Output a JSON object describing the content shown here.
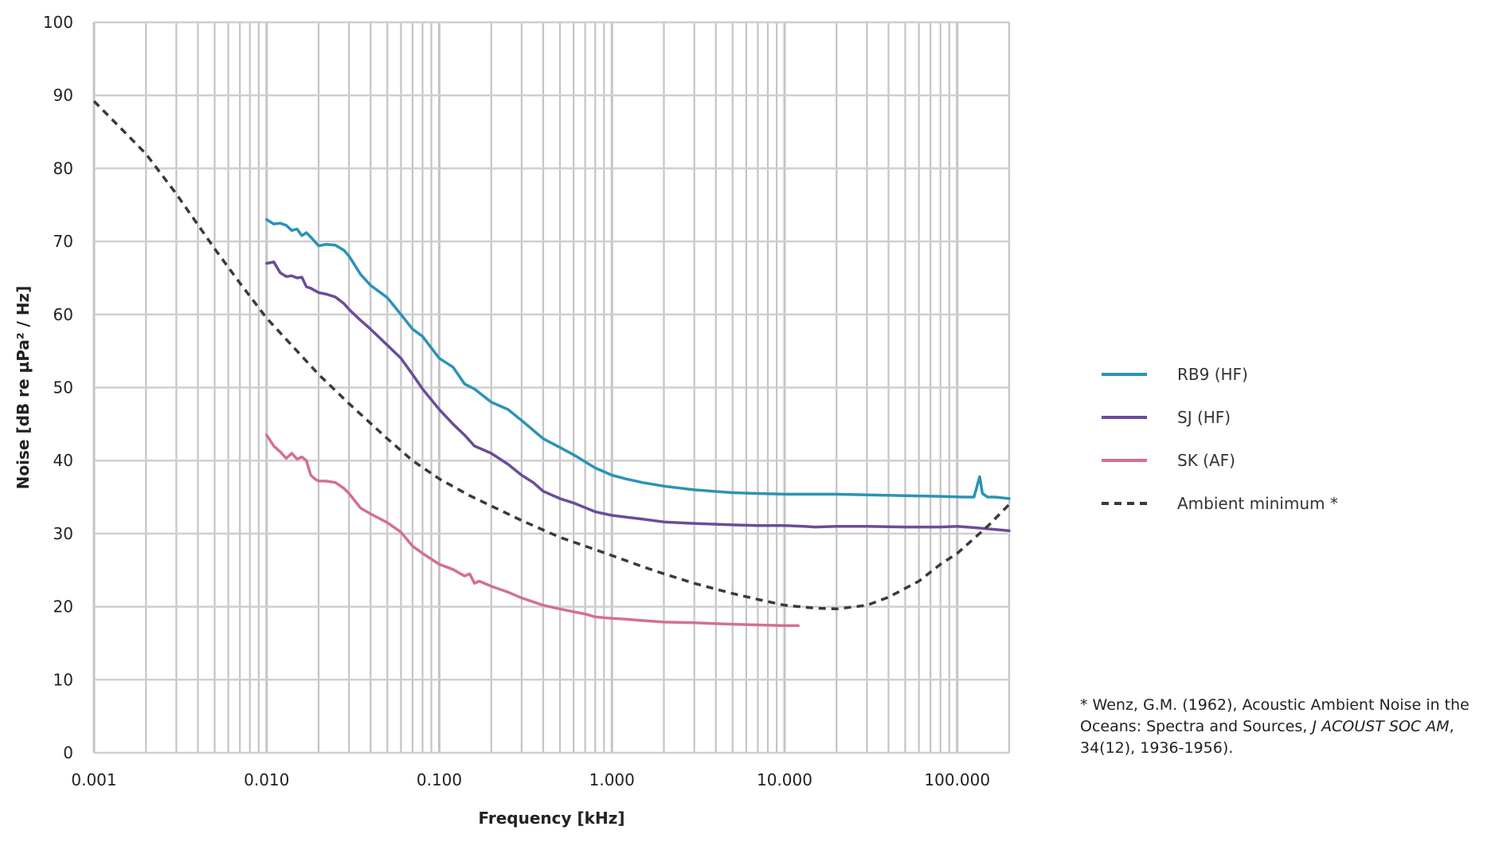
{
  "chart_data": {
    "type": "line",
    "xlabel": "Frequency [kHz]",
    "ylabel": "Noise [dB re µPa² / Hz]",
    "x_scale": "log",
    "xlim": [
      0.001,
      200
    ],
    "ylim": [
      0,
      100
    ],
    "grid": true,
    "legend_position": "right",
    "x_ticks": [
      0.001,
      0.01,
      0.1,
      1,
      10,
      100
    ],
    "x_tick_labels": [
      "0.001",
      "0.010",
      "0.100",
      "1.000",
      "10.000",
      "100.000"
    ],
    "y_ticks": [
      0,
      10,
      20,
      30,
      40,
      50,
      60,
      70,
      80,
      90,
      100
    ],
    "y_tick_labels": [
      "0",
      "10",
      "20",
      "30",
      "40",
      "50",
      "60",
      "70",
      "80",
      "90",
      "100"
    ],
    "series": [
      {
        "name": "RB9 (HF)",
        "color": "#2b93b5",
        "dash": "solid",
        "x": [
          0.01,
          0.011,
          0.012,
          0.013,
          0.014,
          0.015,
          0.016,
          0.017,
          0.018,
          0.02,
          0.022,
          0.025,
          0.028,
          0.03,
          0.035,
          0.04,
          0.05,
          0.06,
          0.07,
          0.08,
          0.1,
          0.12,
          0.14,
          0.16,
          0.2,
          0.25,
          0.3,
          0.4,
          0.5,
          0.6,
          0.8,
          1.0,
          1.2,
          1.5,
          2.0,
          3.0,
          5.0,
          7.0,
          10.0,
          20.0,
          30.0,
          50.0,
          80.0,
          110.0,
          125.0,
          135.0,
          140.0,
          150.0,
          165.0,
          200.0
        ],
        "y": [
          73,
          72.4,
          72.5,
          72.2,
          71.5,
          71.7,
          70.8,
          71.2,
          70.6,
          69.4,
          69.6,
          69.5,
          68.8,
          68,
          65.5,
          64,
          62.3,
          60,
          58,
          57,
          54,
          52.8,
          50.5,
          49.8,
          48,
          47,
          45.5,
          43,
          41.8,
          40.8,
          39,
          38,
          37.5,
          37,
          36.5,
          36,
          35.6,
          35.5,
          35.4,
          35.4,
          35.3,
          35.2,
          35.1,
          35,
          35,
          37.8,
          35.5,
          35,
          35,
          34.8
        ]
      },
      {
        "name": "SJ (HF)",
        "color": "#6b4c9a",
        "dash": "solid",
        "x": [
          0.01,
          0.011,
          0.012,
          0.013,
          0.014,
          0.015,
          0.016,
          0.017,
          0.018,
          0.02,
          0.022,
          0.025,
          0.028,
          0.03,
          0.035,
          0.04,
          0.05,
          0.06,
          0.07,
          0.08,
          0.1,
          0.12,
          0.14,
          0.16,
          0.2,
          0.25,
          0.3,
          0.35,
          0.4,
          0.5,
          0.6,
          0.8,
          1.0,
          1.5,
          2.0,
          3.0,
          5.0,
          7.0,
          10.0,
          13.0,
          15.0,
          20.0,
          30.0,
          50.0,
          80.0,
          100.0,
          130.0,
          200.0
        ],
        "y": [
          67,
          67.2,
          65.7,
          65.2,
          65.3,
          65,
          65.1,
          63.8,
          63.6,
          63,
          62.8,
          62.4,
          61.5,
          60.7,
          59.2,
          58,
          55.8,
          54,
          51.8,
          49.8,
          47,
          45,
          43.5,
          42,
          41,
          39.5,
          38,
          37,
          35.8,
          34.8,
          34.2,
          33,
          32.5,
          32,
          31.6,
          31.4,
          31.2,
          31.1,
          31.1,
          31,
          30.9,
          31,
          31,
          30.9,
          30.9,
          31,
          30.8,
          30.4
        ]
      },
      {
        "name": "SK (AF)",
        "color": "#d4708f",
        "dash": "solid",
        "x": [
          0.01,
          0.011,
          0.012,
          0.013,
          0.014,
          0.015,
          0.016,
          0.017,
          0.018,
          0.019,
          0.02,
          0.022,
          0.025,
          0.028,
          0.03,
          0.035,
          0.04,
          0.05,
          0.06,
          0.07,
          0.08,
          0.1,
          0.12,
          0.14,
          0.15,
          0.16,
          0.17,
          0.2,
          0.25,
          0.3,
          0.4,
          0.5,
          0.6,
          0.7,
          0.8,
          1.0,
          1.2,
          1.5,
          2.0,
          3.0,
          5.0,
          7.0,
          10.0,
          12.0
        ],
        "y": [
          43.5,
          42,
          41.2,
          40.3,
          41,
          40.2,
          40.5,
          40,
          38,
          37.5,
          37.2,
          37.2,
          37,
          36.2,
          35.5,
          33.5,
          32.7,
          31.5,
          30.2,
          28.3,
          27.3,
          25.8,
          25.1,
          24.2,
          24.5,
          23.2,
          23.5,
          22.8,
          22,
          21.2,
          20.2,
          19.7,
          19.3,
          19,
          18.6,
          18.4,
          18.3,
          18.1,
          17.9,
          17.8,
          17.6,
          17.5,
          17.4,
          17.4
        ]
      },
      {
        "name": "Ambient minimum *",
        "color": "#3a3a3a",
        "dash": "dashed",
        "x": [
          0.001,
          0.0015,
          0.002,
          0.003,
          0.005,
          0.007,
          0.01,
          0.015,
          0.02,
          0.03,
          0.05,
          0.07,
          0.1,
          0.15,
          0.2,
          0.3,
          0.5,
          0.7,
          1.0,
          1.5,
          2.0,
          3.0,
          5.0,
          7.0,
          10.0,
          15.0,
          20.0,
          30.0,
          40.0,
          60.0,
          80.0,
          100.0,
          150.0,
          200.0
        ],
        "y": [
          89.2,
          85,
          82,
          76.5,
          69,
          64.3,
          59.5,
          55,
          51.8,
          47.8,
          43,
          40,
          37.5,
          35.2,
          33.8,
          31.8,
          29.5,
          28.3,
          27,
          25.5,
          24.5,
          23.2,
          21.8,
          21,
          20.2,
          19.8,
          19.7,
          20.2,
          21.3,
          23.5,
          25.8,
          27.3,
          31,
          34
        ]
      }
    ],
    "footnote": {
      "before": "* Wenz, G.M. (1962), Acoustic Ambient Noise in the Oceans: Spectra and Sources, ",
      "italic": "J ACOUST SOC AM",
      "after": ", 34(12), 1936-1956)."
    }
  }
}
